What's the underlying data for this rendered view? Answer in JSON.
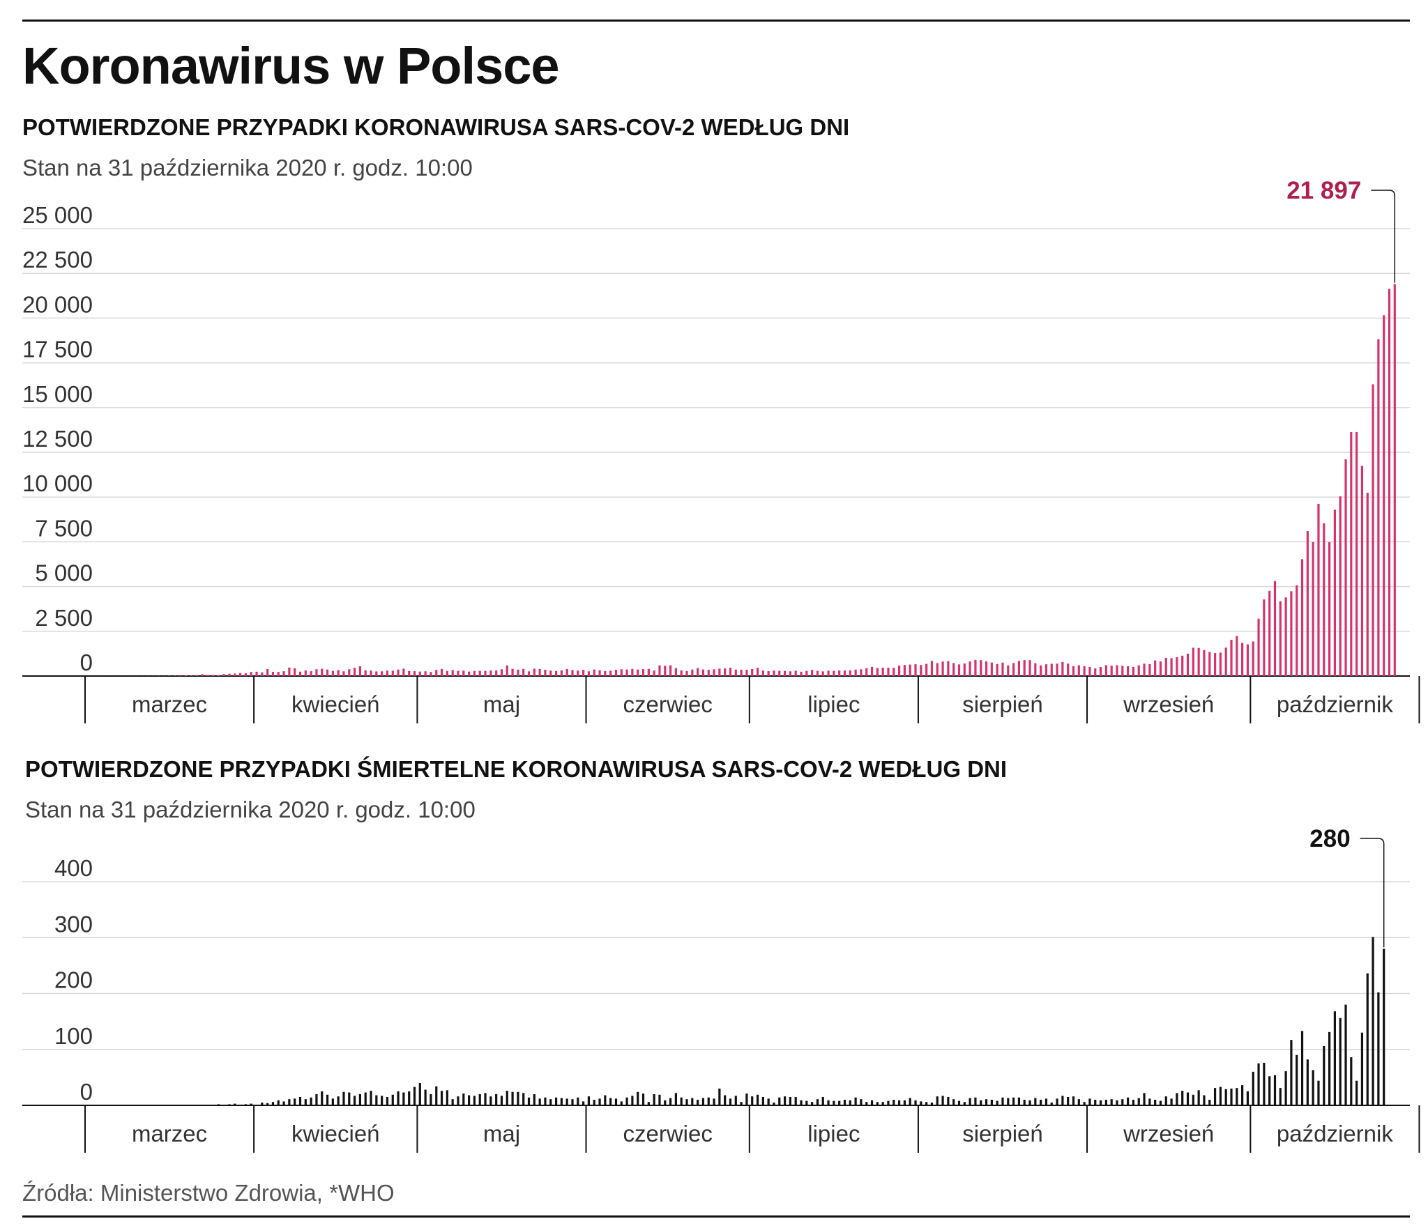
{
  "title": "Koronawirus w Polsce",
  "source": "Źródła: Ministerstwo Zdrowia, *WHO",
  "chart_data": [
    {
      "type": "bar",
      "title": "POTWIERDZONE PRZYPADKI KORONAWIRUSA SARS-COV-2 WEDŁUG DNI",
      "subtitle": "Stan na 31 października 2020 r. godz. 10:00",
      "color": "#d6336c",
      "gridColor": "#d9d9d9",
      "ylim": [
        0,
        25000
      ],
      "yticks": [
        0,
        2500,
        5000,
        7500,
        10000,
        12500,
        15000,
        17500,
        20000,
        22500,
        25000
      ],
      "ytick_labels": [
        "0",
        "2 500",
        "5 000",
        "7 500",
        "10 000",
        "12 500",
        "15 000",
        "17 500",
        "20 000",
        "22 500",
        "25 000"
      ],
      "months": [
        "marzec",
        "kwiecień",
        "maj",
        "czerwiec",
        "lipiec",
        "sierpień",
        "wrzesień",
        "październik"
      ],
      "month_days": [
        31,
        30,
        31,
        30,
        31,
        31,
        30,
        31
      ],
      "start_day": 4,
      "callout": {
        "label": "21 897",
        "value": 21897,
        "color": "#b01e4d"
      },
      "values": [
        1,
        0,
        0,
        1,
        5,
        6,
        2,
        6,
        10,
        15,
        7,
        17,
        21,
        20,
        43,
        22,
        52,
        103,
        63,
        58,
        48,
        112,
        132,
        144,
        170,
        152,
        232,
        240,
        204,
        392,
        236,
        230,
        268,
        475,
        437,
        244,
        311,
        268,
        380,
        401,
        361,
        285,
        335,
        263,
        380,
        460,
        545,
        318,
        306,
        257,
        263,
        304,
        298,
        361,
        414,
        281,
        271,
        249,
        263,
        223,
        344,
        396,
        281,
        330,
        289,
        301,
        249,
        285,
        292,
        286,
        310,
        312,
        378,
        595,
        402,
        357,
        399,
        260,
        412,
        394,
        351,
        304,
        279,
        315,
        393,
        333,
        308,
        342,
        264,
        368,
        326,
        274,
        300,
        352,
        378,
        363,
        396,
        365,
        386,
        401,
        312,
        597,
        576,
        599,
        440,
        314,
        282,
        362,
        440,
        367,
        353,
        377,
        412,
        423,
        465,
        358,
        352,
        354,
        390,
        460,
        305,
        270,
        302,
        295,
        286,
        262,
        298,
        240,
        284,
        344,
        287,
        260,
        299,
        291,
        310,
        308,
        319,
        358,
        378,
        440,
        512,
        448,
        465,
        462,
        458,
        584,
        614,
        640,
        658,
        615,
        680,
        843,
        727,
        809,
        832,
        726,
        650,
        704,
        811,
        903,
        887,
        820,
        753,
        671,
        752,
        597,
        726,
        843,
        891,
        887,
        716,
        594,
        655,
        684,
        691,
        787,
        697,
        550,
        599,
        555,
        508,
        425,
        502,
        607,
        580,
        606,
        574,
        545,
        510,
        600,
        692,
        662,
        871,
        814,
        1015,
        998,
        1051,
        1136,
        1250,
        1583,
        1569,
        1453,
        1344,
        1282,
        1310,
        1589,
        2023,
        2236,
        1851,
        1770,
        1930,
        3203,
        4280,
        4759,
        5300,
        4178,
        4394,
        4739,
        5068,
        6526,
        8099,
        7482,
        9622,
        8536,
        7482,
        9291,
        10040,
        12107,
        13628,
        13632,
        11742,
        10241,
        16300,
        18820,
        20156,
        21629,
        21897
      ]
    },
    {
      "type": "bar",
      "title": "POTWIERDZONE PRZYPADKI ŚMIERTELNE KORONAWIRUSA SARS-COV-2 WEDŁUG DNI",
      "subtitle": "Stan na 31 października 2020 r. godz. 10:00",
      "color": "#111111",
      "gridColor": "#d9d9d9",
      "ylim": [
        0,
        400
      ],
      "yticks": [
        0,
        100,
        200,
        300,
        400
      ],
      "ytick_labels": [
        "0",
        "100",
        "200",
        "300",
        "400"
      ],
      "months": [
        "marzec",
        "kwiecień",
        "maj",
        "czerwiec",
        "lipiec",
        "sierpień",
        "wrzesień",
        "październik"
      ],
      "month_days": [
        31,
        30,
        31,
        30,
        31,
        31,
        30,
        31
      ],
      "start_day": 4,
      "callout": {
        "label": "280",
        "value": 280,
        "color": "#111111"
      },
      "values": [
        0,
        0,
        0,
        0,
        0,
        0,
        0,
        0,
        1,
        1,
        1,
        0,
        0,
        0,
        0,
        0,
        0,
        0,
        0,
        1,
        2,
        0,
        2,
        3,
        1,
        2,
        3,
        0,
        5,
        4,
        6,
        9,
        7,
        11,
        12,
        15,
        11,
        14,
        20,
        25,
        19,
        12,
        16,
        24,
        23,
        17,
        20,
        23,
        26,
        18,
        17,
        15,
        19,
        25,
        23,
        25,
        33,
        40,
        28,
        20,
        34,
        26,
        27,
        11,
        16,
        21,
        18,
        17,
        20,
        22,
        16,
        20,
        17,
        26,
        24,
        24,
        22,
        14,
        20,
        12,
        14,
        11,
        14,
        13,
        12,
        11,
        14,
        7,
        16,
        10,
        12,
        18,
        13,
        12,
        7,
        14,
        17,
        24,
        21,
        6,
        20,
        19,
        9,
        13,
        22,
        14,
        11,
        13,
        10,
        13,
        14,
        12,
        30,
        18,
        12,
        17,
        6,
        21,
        16,
        19,
        15,
        12,
        5,
        14,
        16,
        15,
        15,
        9,
        8,
        6,
        11,
        15,
        9,
        8,
        8,
        10,
        9,
        14,
        11,
        6,
        9,
        6,
        6,
        8,
        10,
        9,
        9,
        13,
        9,
        7,
        6,
        5,
        16,
        17,
        15,
        11,
        8,
        6,
        13,
        14,
        9,
        11,
        10,
        8,
        14,
        13,
        14,
        14,
        10,
        9,
        13,
        10,
        12,
        5,
        12,
        17,
        15,
        16,
        11,
        6,
        12,
        10,
        9,
        10,
        11,
        9,
        11,
        14,
        10,
        13,
        22,
        12,
        10,
        8,
        16,
        12,
        22,
        26,
        23,
        19,
        27,
        18,
        10,
        31,
        33,
        29,
        30,
        31,
        36,
        25,
        60,
        75,
        76,
        52,
        54,
        31,
        61,
        117,
        90,
        133,
        82,
        63,
        44,
        106,
        131,
        168,
        156,
        180,
        86,
        44,
        130,
        236,
        301,
        202,
        280
      ]
    }
  ]
}
